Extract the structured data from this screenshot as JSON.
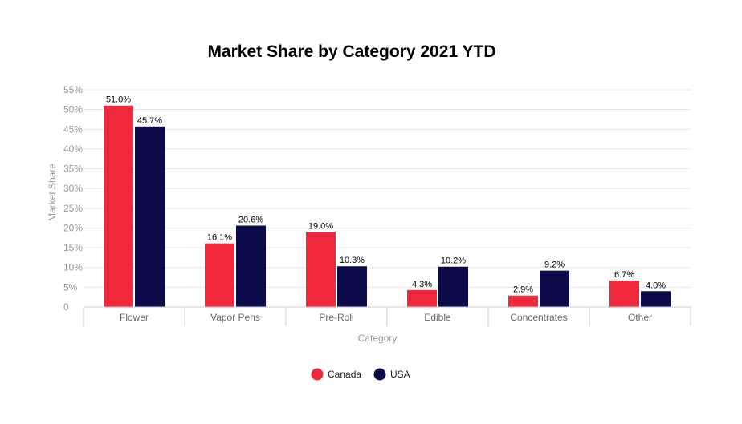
{
  "chart_data": {
    "type": "bar",
    "title": "Market Share by Category 2021 YTD",
    "xlabel": "Category",
    "ylabel": "Market Share",
    "categories": [
      "Flower",
      "Vapor Pens",
      "Pre-Roll",
      "Edible",
      "Concentrates",
      "Other"
    ],
    "series": [
      {
        "name": "Canada",
        "color": "#f0283c",
        "values": [
          51.0,
          16.1,
          19.0,
          4.3,
          2.9,
          6.7
        ],
        "labels": [
          "51.0%",
          "16.1%",
          "19.0%",
          "4.3%",
          "2.9%",
          "6.7%"
        ]
      },
      {
        "name": "USA",
        "color": "#0b0b4a",
        "values": [
          45.7,
          20.6,
          10.3,
          10.2,
          9.2,
          4.0
        ],
        "labels": [
          "45.7%",
          "20.6%",
          "10.3%",
          "10.2%",
          "9.2%",
          "4.0%"
        ]
      }
    ],
    "ylim": [
      0,
      55
    ],
    "yticks": [
      "0",
      "5%",
      "10%",
      "15%",
      "20%",
      "25%",
      "30%",
      "35%",
      "40%",
      "45%",
      "50%",
      "55%"
    ],
    "grid": true,
    "legend_position": "bottom-center"
  }
}
